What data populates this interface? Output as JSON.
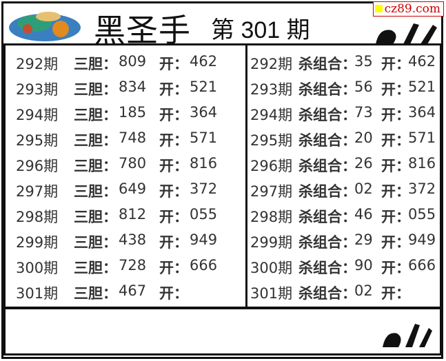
{
  "header": {
    "title": "黑圣手",
    "issue": "第 301 期",
    "watermark": "cz89.com"
  },
  "colors": {
    "border": "#111111",
    "text": "#333333",
    "watermark": "#cc0000",
    "watermark_square": "#ffff00"
  },
  "labels": {
    "left_key": "三胆：",
    "right_key": "杀组合：",
    "draw_key": "开："
  },
  "left_rows": [
    {
      "period": "292期",
      "value": "809",
      "draw": "462"
    },
    {
      "period": "293期",
      "value": "834",
      "draw": "521"
    },
    {
      "period": "294期",
      "value": "185",
      "draw": "364"
    },
    {
      "period": "295期",
      "value": "748",
      "draw": "571"
    },
    {
      "period": "296期",
      "value": "780",
      "draw": "816"
    },
    {
      "period": "297期",
      "value": "649",
      "draw": "372"
    },
    {
      "period": "298期",
      "value": "812",
      "draw": "055"
    },
    {
      "period": "299期",
      "value": "438",
      "draw": "949"
    },
    {
      "period": "300期",
      "value": "728",
      "draw": "666"
    },
    {
      "period": "301期",
      "value": "467",
      "draw": ""
    }
  ],
  "right_rows": [
    {
      "period": "292期",
      "value": "35",
      "draw": "462"
    },
    {
      "period": "293期",
      "value": "56",
      "draw": "521"
    },
    {
      "period": "294期",
      "value": "73",
      "draw": "364"
    },
    {
      "period": "295期",
      "value": "20",
      "draw": "571"
    },
    {
      "period": "296期",
      "value": "26",
      "draw": "816"
    },
    {
      "period": "297期",
      "value": "02",
      "draw": "372"
    },
    {
      "period": "298期",
      "value": "46",
      "draw": "055"
    },
    {
      "period": "299期",
      "value": "29",
      "draw": "949"
    },
    {
      "period": "300期",
      "value": "90",
      "draw": "666"
    },
    {
      "period": "301期",
      "value": "02",
      "draw": ""
    }
  ]
}
